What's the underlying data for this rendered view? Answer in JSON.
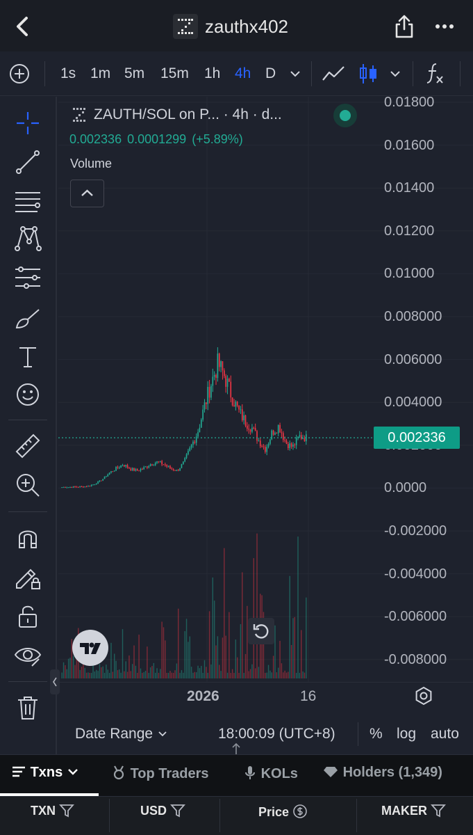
{
  "header": {
    "token_name": "zauthx402",
    "icons": [
      "back-chevron-icon",
      "share-icon",
      "more-dots-icon"
    ]
  },
  "toolbar": {
    "timeframes": [
      "1s",
      "1m",
      "5m",
      "15m",
      "1h",
      "4h",
      "D"
    ],
    "active_timeframe": "4h",
    "icons": [
      "add-indicator-icon",
      "line-chart-icon",
      "candlestick-icon",
      "indicators-fx-icon"
    ]
  },
  "legend": {
    "title": "ZAUTH/SOL on P... · 4h · d...",
    "price": "0.002336",
    "change_abs": "0.0001299",
    "change_pct": "(+5.89%)",
    "volume_label": "Volume"
  },
  "price_axis": {
    "labels": [
      "0.01800",
      "0.01600",
      "0.01400",
      "0.01200",
      "0.01000",
      "0.008000",
      "0.006000",
      "0.004000",
      "0.002000",
      "0.0000",
      "-0.002000",
      "-0.004000",
      "-0.006000",
      "-0.008000"
    ],
    "current_price_tag": "0.002336"
  },
  "time_axis": {
    "labels": [
      "2026",
      "16"
    ]
  },
  "bottom_bar": {
    "date_range": "Date Range",
    "time": "18:00:09 (UTC+8)",
    "percent": "%",
    "log": "log",
    "auto": "auto"
  },
  "tabs": {
    "items": [
      "Txns",
      "Top Traders",
      "KOLs",
      "Holders (1,349)"
    ],
    "active": "Txns"
  },
  "table_header": {
    "columns": [
      "TXN",
      "USD",
      "Price",
      "MAKER"
    ]
  },
  "colors": {
    "up": "#22ab94",
    "down": "#f23645",
    "accent": "#2962ff",
    "background": "#1e222d"
  },
  "chart_data": {
    "type": "candlestick",
    "pair": "ZAUTH/SOL",
    "interval": "4h",
    "ylim": [
      -0.009,
      0.0185
    ],
    "current_price": 0.002336,
    "approx_close_path": [
      3e-05,
      3e-05,
      4e-05,
      5e-05,
      8e-05,
      0.0002,
      0.0004,
      0.0007,
      0.0009,
      0.0011,
      0.0009,
      0.0008,
      0.0009,
      0.0011,
      0.0012,
      0.0011,
      0.0009,
      0.0008,
      0.0012,
      0.0019,
      0.0026,
      0.0038,
      0.0049,
      0.0058,
      0.0052,
      0.0043,
      0.0036,
      0.0031,
      0.0028,
      0.0022,
      0.0018,
      0.0026,
      0.0029,
      0.0021,
      0.0019,
      0.0024,
      0.002336
    ],
    "x_labels": [
      "2026",
      "16"
    ]
  }
}
